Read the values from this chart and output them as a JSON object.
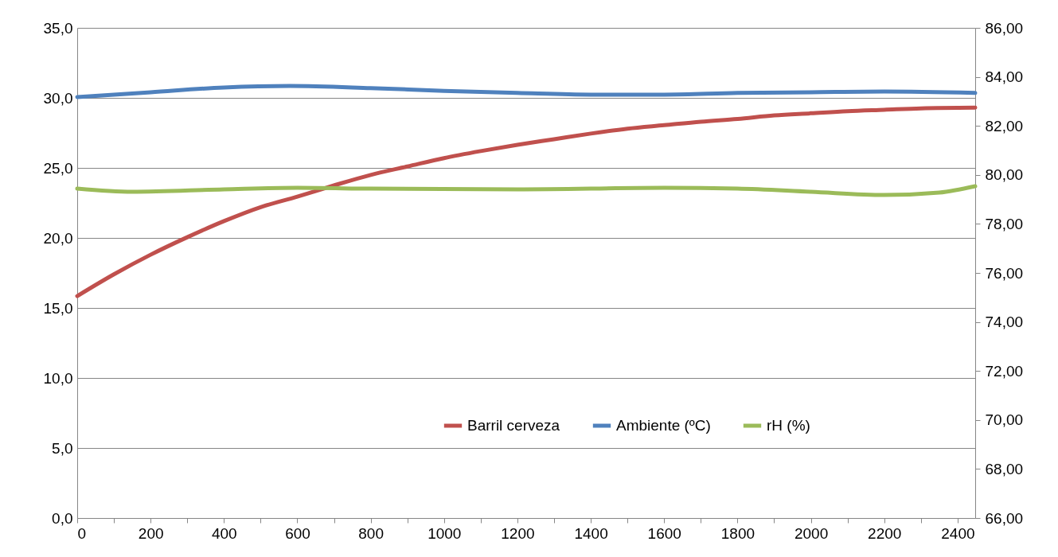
{
  "chart_data": {
    "type": "line",
    "xlim": [
      0,
      2448
    ],
    "xticks": [
      0,
      {
        "value": 100,
        "label": null
      },
      200,
      {
        "value": 300,
        "label": null
      },
      400,
      {
        "value": 500,
        "label": null
      },
      600,
      {
        "value": 700,
        "label": null
      },
      800,
      {
        "value": 900,
        "label": null
      },
      1000,
      {
        "value": 1100,
        "label": null
      },
      1200,
      {
        "value": 1300,
        "label": null
      },
      1400,
      {
        "value": 1500,
        "label": null
      },
      1600,
      {
        "value": 1700,
        "label": null
      },
      1800,
      {
        "value": 1900,
        "label": null
      },
      2000,
      {
        "value": 2100,
        "label": null
      },
      2200,
      {
        "value": 2300,
        "label": null
      },
      2400
    ],
    "ylim": [
      0,
      35
    ],
    "yticks": [
      {
        "value": 0,
        "label": "0,0"
      },
      {
        "value": 5,
        "label": "5,0"
      },
      {
        "value": 10,
        "label": "10,0"
      },
      {
        "value": 15,
        "label": "15,0"
      },
      {
        "value": 20,
        "label": "20,0"
      },
      {
        "value": 25,
        "label": "25,0"
      },
      {
        "value": 30,
        "label": "30,0"
      },
      {
        "value": 35,
        "label": "35,0"
      }
    ],
    "y2lim": [
      66,
      86
    ],
    "y2ticks": [
      {
        "value": 66,
        "label": "66,00"
      },
      {
        "value": 68,
        "label": "68,00"
      },
      {
        "value": 70,
        "label": "70,00"
      },
      {
        "value": 72,
        "label": "72,00"
      },
      {
        "value": 74,
        "label": "74,00"
      },
      {
        "value": 76,
        "label": "76,00"
      },
      {
        "value": 78,
        "label": "78,00"
      },
      {
        "value": 80,
        "label": "80,00"
      },
      {
        "value": 82,
        "label": "82,00"
      },
      {
        "value": 84,
        "label": "84,00"
      },
      {
        "value": 86,
        "label": "86,00"
      }
    ],
    "grid": "y",
    "legend": "bottom right",
    "series": [
      {
        "name": "Barril cerveza",
        "color": "#c0504d",
        "x": [
          0,
          100,
          200,
          300,
          400,
          500,
          600,
          700,
          800,
          900,
          1000,
          1100,
          1200,
          1300,
          1400,
          1500,
          1600,
          1700,
          1800,
          1900,
          2000,
          2100,
          2200,
          2300,
          2448
        ],
        "values": [
          15.85,
          17.4,
          18.8,
          20.05,
          21.2,
          22.2,
          22.95,
          23.75,
          24.5,
          25.1,
          25.7,
          26.2,
          26.65,
          27.05,
          27.45,
          27.8,
          28.05,
          28.3,
          28.5,
          28.75,
          28.9,
          29.05,
          29.15,
          29.25,
          29.3
        ]
      },
      {
        "name": "Ambiente (ºC)",
        "color": "#4f81bd",
        "x": [
          0,
          200,
          400,
          580,
          800,
          1000,
          1200,
          1400,
          1600,
          1800,
          2000,
          2200,
          2448
        ],
        "values": [
          30.06,
          30.4,
          30.74,
          30.85,
          30.7,
          30.5,
          30.35,
          30.23,
          30.23,
          30.35,
          30.4,
          30.45,
          30.35
        ]
      },
      {
        "name": "rH (%)",
        "color": "#9bbb59",
        "axis": "y2",
        "x": [
          0,
          150,
          400,
          600,
          800,
          1200,
          1600,
          1800,
          2000,
          2200,
          2350,
          2448
        ],
        "values": [
          79.44,
          79.31,
          79.41,
          79.47,
          79.44,
          79.41,
          79.47,
          79.44,
          79.31,
          79.18,
          79.28,
          79.54
        ]
      }
    ]
  }
}
